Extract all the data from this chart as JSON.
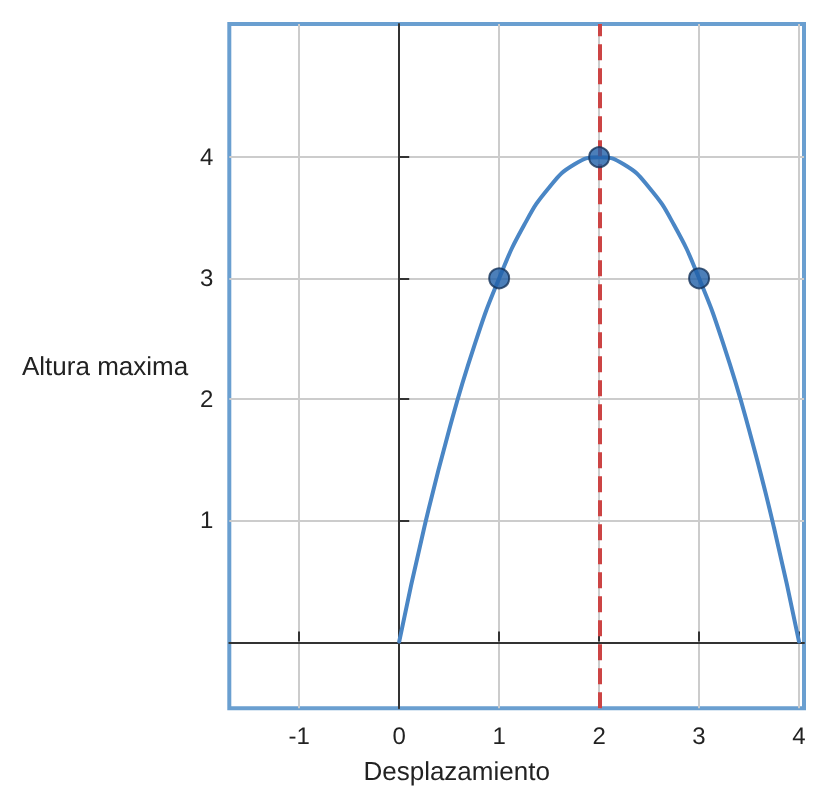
{
  "chart_data": {
    "type": "line",
    "xlabel": "Desplazamiento",
    "ylabel": "Altura maxima",
    "xlim": [
      -1.7,
      4.05
    ],
    "ylim": [
      -0.55,
      5.1
    ],
    "xticks": [
      -1,
      0,
      1,
      2,
      3,
      4
    ],
    "yticks": [
      1,
      2,
      3,
      4
    ],
    "grid": true,
    "series": [
      {
        "color": "#4a86c5",
        "marker": "none",
        "x": [
          0,
          0.25,
          0.5,
          0.75,
          1,
          1.25,
          1.5,
          1.75,
          2,
          2.25,
          2.5,
          2.75,
          3,
          3.25,
          3.5,
          3.75,
          4
        ],
        "values": [
          0,
          0.94,
          1.75,
          2.44,
          3,
          3.44,
          3.75,
          3.94,
          4,
          3.94,
          3.75,
          3.44,
          3,
          2.44,
          1.75,
          0.94,
          0
        ]
      },
      {
        "type": "scatter",
        "color": "#1f5fa8",
        "marker": "circle",
        "x": [
          1,
          2,
          3
        ],
        "values": [
          3,
          4,
          3
        ]
      }
    ],
    "ref_lines": [
      {
        "axis": "x",
        "value": 2,
        "color": "#cc4444",
        "line_style": "dashed"
      }
    ]
  }
}
